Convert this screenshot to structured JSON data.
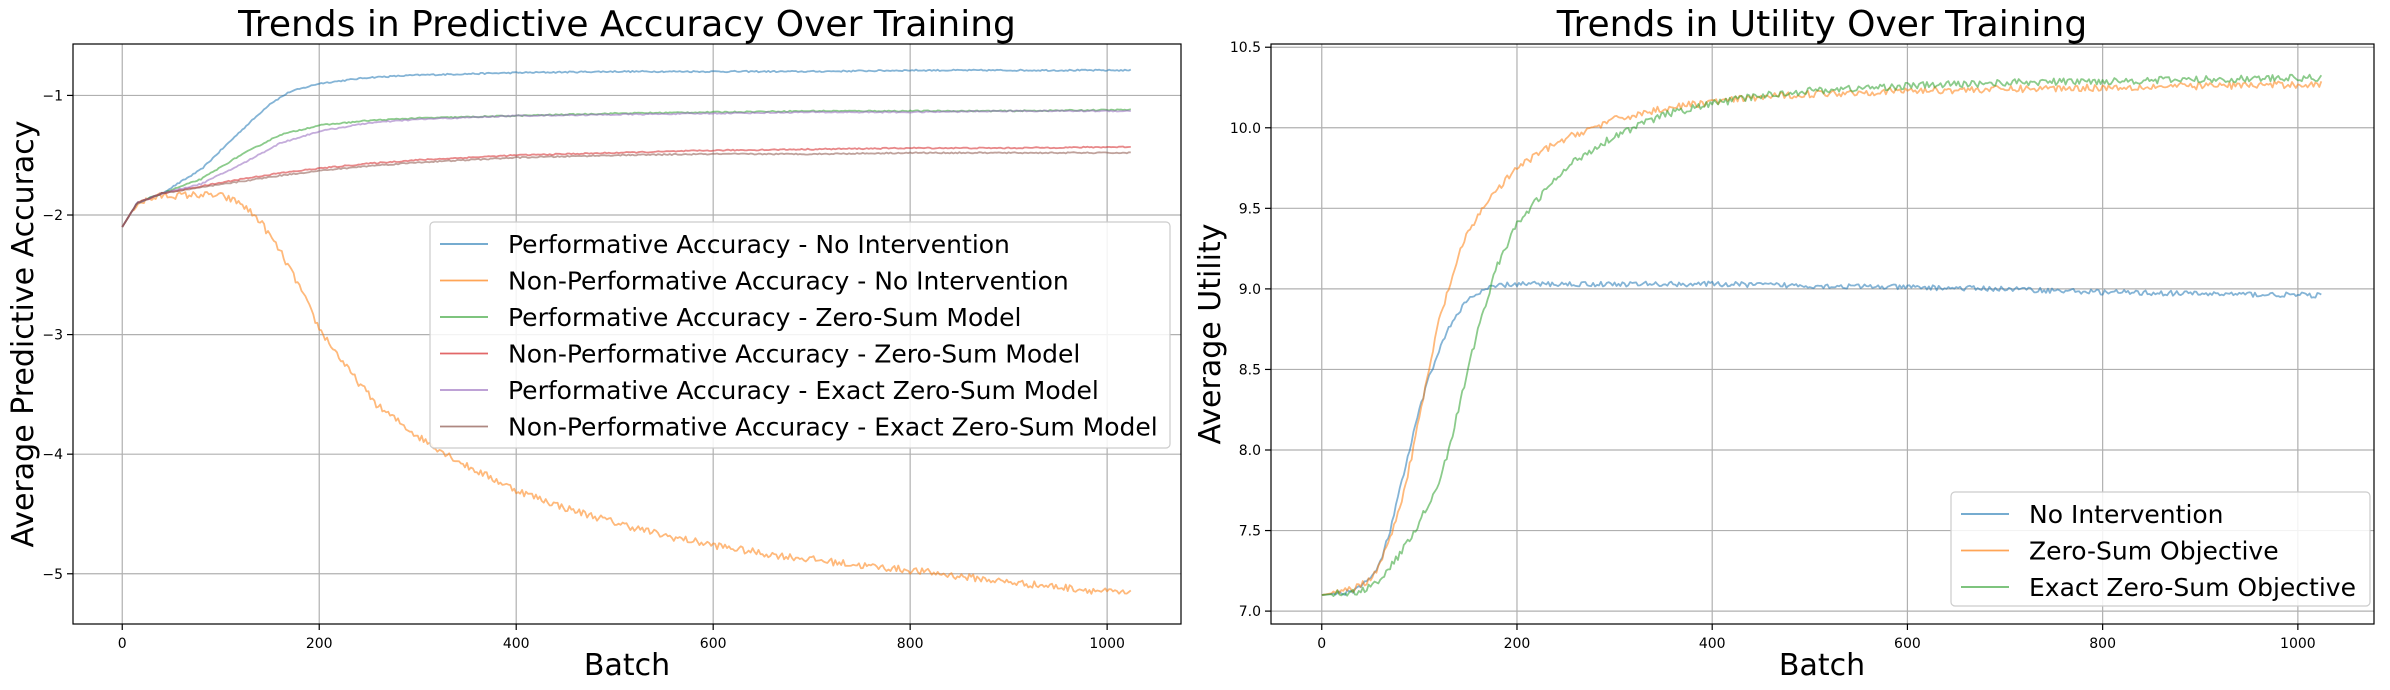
{
  "chart_data": [
    {
      "type": "line",
      "title": "Trends in Predictive Accuracy Over Training",
      "xlabel": "Batch",
      "ylabel": "Average Predictive Accuracy",
      "xlim": [
        -50,
        1075
      ],
      "ylim": [
        -5.42,
        -0.57
      ],
      "xticks": [
        0,
        200,
        400,
        600,
        800,
        1000
      ],
      "xtick_labels": [
        "0",
        "200",
        "400",
        "600",
        "800",
        "1000"
      ],
      "yticks": [
        -5,
        -4,
        -3,
        -2,
        -1
      ],
      "ytick_labels": [
        "−5",
        "−4",
        "−3",
        "−2",
        "−1"
      ],
      "grid": true,
      "legend": "center-right",
      "series": [
        {
          "name": "Performative Accuracy - No Intervention",
          "color": "#1f77b4",
          "x": [
            0,
            15,
            40,
            80,
            120,
            150,
            170,
            200,
            250,
            300,
            400,
            500,
            600,
            700,
            800,
            900,
            1025
          ],
          "y": [
            -2.1,
            -1.9,
            -1.82,
            -1.62,
            -1.3,
            -1.07,
            -0.97,
            -0.9,
            -0.85,
            -0.83,
            -0.81,
            -0.8,
            -0.8,
            -0.8,
            -0.79,
            -0.79,
            -0.79
          ]
        },
        {
          "name": "Non-Performative Accuracy - No Intervention",
          "color": "#ff7f0e",
          "x": [
            0,
            15,
            40,
            80,
            100,
            120,
            140,
            160,
            180,
            200,
            230,
            260,
            300,
            350,
            400,
            450,
            500,
            550,
            600,
            650,
            700,
            750,
            800,
            850,
            900,
            950,
            1025
          ],
          "y": [
            -2.1,
            -1.9,
            -1.84,
            -1.83,
            -1.84,
            -1.9,
            -2.05,
            -2.3,
            -2.6,
            -2.95,
            -3.3,
            -3.6,
            -3.85,
            -4.1,
            -4.3,
            -4.45,
            -4.57,
            -4.68,
            -4.76,
            -4.83,
            -4.88,
            -4.93,
            -4.97,
            -5.02,
            -5.07,
            -5.11,
            -5.17
          ]
        },
        {
          "name": "Performative Accuracy - Zero-Sum Model",
          "color": "#2ca02c",
          "x": [
            0,
            15,
            40,
            80,
            120,
            160,
            200,
            250,
            300,
            400,
            500,
            600,
            700,
            800,
            900,
            1025
          ],
          "y": [
            -2.1,
            -1.9,
            -1.82,
            -1.7,
            -1.5,
            -1.33,
            -1.25,
            -1.21,
            -1.19,
            -1.17,
            -1.15,
            -1.14,
            -1.13,
            -1.13,
            -1.13,
            -1.12
          ]
        },
        {
          "name": "Non-Performative Accuracy - Zero-Sum Model",
          "color": "#d62728",
          "x": [
            0,
            15,
            40,
            80,
            120,
            160,
            200,
            250,
            300,
            400,
            500,
            600,
            700,
            800,
            900,
            1025
          ],
          "y": [
            -2.1,
            -1.9,
            -1.82,
            -1.76,
            -1.7,
            -1.65,
            -1.61,
            -1.57,
            -1.54,
            -1.5,
            -1.48,
            -1.46,
            -1.45,
            -1.44,
            -1.44,
            -1.43
          ]
        },
        {
          "name": "Performative Accuracy - Exact Zero-Sum Model",
          "color": "#9467bd",
          "x": [
            0,
            15,
            40,
            80,
            120,
            160,
            200,
            250,
            300,
            400,
            500,
            600,
            700,
            800,
            900,
            1025
          ],
          "y": [
            -2.1,
            -1.9,
            -1.82,
            -1.74,
            -1.58,
            -1.4,
            -1.3,
            -1.23,
            -1.2,
            -1.17,
            -1.16,
            -1.15,
            -1.14,
            -1.14,
            -1.13,
            -1.13
          ]
        },
        {
          "name": "Non-Performative Accuracy - Exact Zero-Sum Model",
          "color": "#8c564b",
          "x": [
            0,
            15,
            40,
            80,
            120,
            160,
            200,
            250,
            300,
            400,
            500,
            600,
            700,
            800,
            900,
            1025
          ],
          "y": [
            -2.1,
            -1.9,
            -1.82,
            -1.77,
            -1.72,
            -1.67,
            -1.63,
            -1.59,
            -1.56,
            -1.52,
            -1.5,
            -1.49,
            -1.49,
            -1.48,
            -1.48,
            -1.48
          ]
        }
      ]
    },
    {
      "type": "line",
      "title": "Trends in Utility Over Training",
      "xlabel": "Batch",
      "ylabel": "Average Utility",
      "xlim": [
        -52,
        1078
      ],
      "ylim": [
        6.92,
        10.52
      ],
      "xticks": [
        0,
        200,
        400,
        600,
        800,
        1000
      ],
      "xtick_labels": [
        "0",
        "200",
        "400",
        "600",
        "800",
        "1000"
      ],
      "yticks": [
        7.0,
        7.5,
        8.0,
        8.5,
        9.0,
        9.5,
        10.0,
        10.5
      ],
      "ytick_labels": [
        "7.0",
        "7.5",
        "8.0",
        "8.5",
        "9.0",
        "9.5",
        "10.0",
        "10.5"
      ],
      "grid": true,
      "legend": "lower-right",
      "series": [
        {
          "name": "No Intervention",
          "color": "#1f77b4",
          "x": [
            0,
            30,
            50,
            60,
            70,
            80,
            90,
            100,
            110,
            120,
            130,
            140,
            150,
            160,
            170,
            180,
            200,
            250,
            300,
            400,
            500,
            600,
            700,
            800,
            900,
            1025
          ],
          "y": [
            7.1,
            7.12,
            7.2,
            7.3,
            7.5,
            7.75,
            8.0,
            8.25,
            8.45,
            8.62,
            8.75,
            8.86,
            8.93,
            8.97,
            9.0,
            9.02,
            9.03,
            9.03,
            9.03,
            9.03,
            9.02,
            9.01,
            9.0,
            8.98,
            8.97,
            8.96
          ]
        },
        {
          "name": "Zero-Sum Objective",
          "color": "#ff7f0e",
          "x": [
            0,
            30,
            50,
            60,
            70,
            80,
            90,
            100,
            110,
            120,
            130,
            140,
            150,
            170,
            200,
            230,
            260,
            300,
            350,
            400,
            450,
            500,
            600,
            700,
            800,
            900,
            1025
          ],
          "y": [
            7.1,
            7.13,
            7.2,
            7.3,
            7.45,
            7.65,
            7.9,
            8.2,
            8.5,
            8.8,
            9.0,
            9.2,
            9.35,
            9.55,
            9.75,
            9.87,
            9.96,
            10.05,
            10.12,
            10.16,
            10.19,
            10.21,
            10.23,
            10.24,
            10.25,
            10.26,
            10.27
          ]
        },
        {
          "name": "Exact Zero-Sum Objective",
          "color": "#2ca02c",
          "x": [
            0,
            40,
            60,
            80,
            100,
            120,
            130,
            140,
            150,
            160,
            170,
            180,
            200,
            230,
            260,
            300,
            350,
            400,
            450,
            500,
            600,
            700,
            800,
            900,
            1025
          ],
          "y": [
            7.1,
            7.12,
            7.2,
            7.35,
            7.55,
            7.8,
            8.0,
            8.25,
            8.5,
            8.75,
            8.95,
            9.15,
            9.4,
            9.62,
            9.8,
            9.95,
            10.08,
            10.15,
            10.2,
            10.23,
            10.26,
            10.28,
            10.29,
            10.3,
            10.31
          ]
        }
      ]
    }
  ]
}
